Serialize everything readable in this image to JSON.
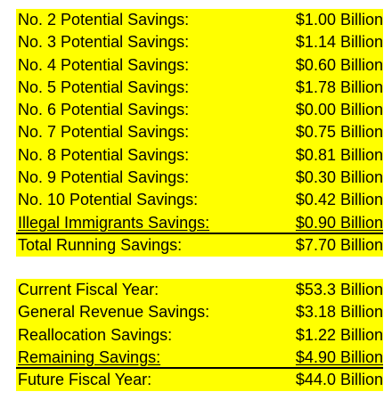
{
  "savings": [
    {
      "label": "No. 2 Potential Savings:",
      "value": "$1.00 Billion"
    },
    {
      "label": "No. 3 Potential Savings:",
      "value": "$1.14 Billion"
    },
    {
      "label": "No. 4 Potential Savings:",
      "value": "$0.60 Billion"
    },
    {
      "label": "No. 5 Potential Savings:",
      "value": "$1.78 Billion"
    },
    {
      "label": "No. 6 Potential Savings:",
      "value": "$0.00 Billion"
    },
    {
      "label": "No. 7 Potential Savings:",
      "value": "$0.75 Billion"
    },
    {
      "label": "No. 8 Potential Savings:",
      "value": "$0.81 Billion"
    },
    {
      "label": "No. 9 Potential Savings:",
      "value": "$0.30 Billion"
    },
    {
      "label": "No. 10 Potential Savings:",
      "value": "$0.42 Billion"
    },
    {
      "label": "Illegal Immigrants Savings:",
      "value": "$0.90 Billion"
    },
    {
      "label": "Total Running Savings:",
      "value": "$7.70 Billion"
    }
  ],
  "fiscal": [
    {
      "label": "Current Fiscal Year:",
      "value": "$53.3 Billion"
    },
    {
      "label": "General Revenue Savings:",
      "value": "$3.18 Billion"
    },
    {
      "label": "Reallocation Savings:",
      "value": "$1.22 Billion"
    },
    {
      "label": "Remaining Savings:",
      "value": "$4.90 Billion"
    },
    {
      "label": "Future Fiscal Year:",
      "value": "$44.0 Billion"
    }
  ],
  "colors": {
    "highlight": "#ffff00",
    "text": "#000000"
  }
}
